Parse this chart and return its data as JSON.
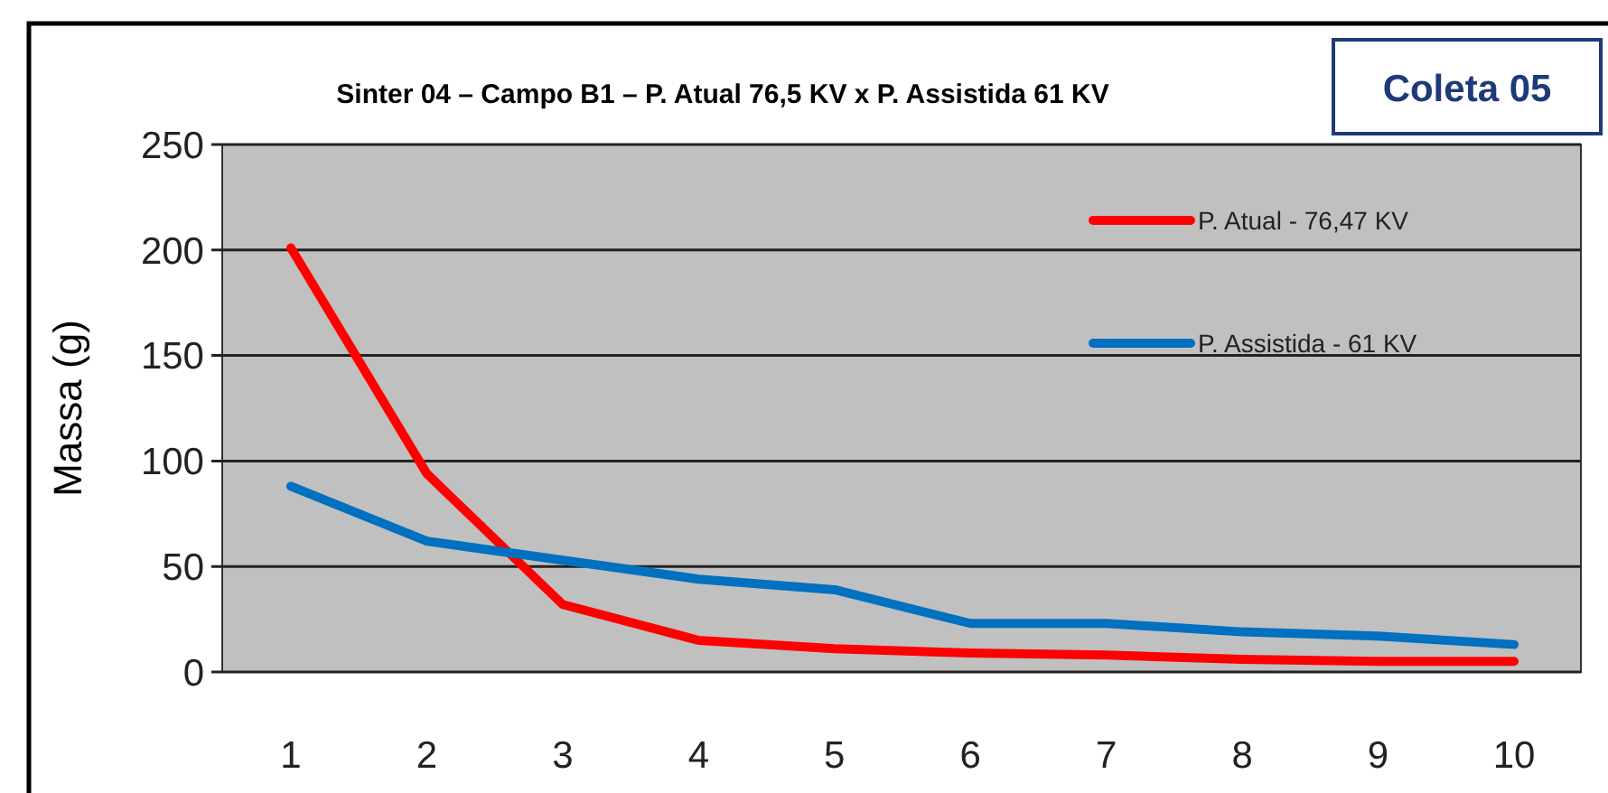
{
  "chart_data": {
    "type": "line",
    "title": "Sinter 04 – Campo B1 – P. Atual 76,5 KV x P. Assistida 61 KV",
    "ylabel": "Massa (g)",
    "annotations": [
      "Coleta 05"
    ],
    "categories": [
      "1",
      "2",
      "3",
      "4",
      "5",
      "6",
      "7",
      "8",
      "9",
      "10"
    ],
    "series": [
      {
        "name": "P. Atual - 76,47 KV",
        "color": "#ff0000",
        "values": [
          201,
          94,
          32,
          15,
          11,
          9,
          8,
          6,
          5,
          5
        ]
      },
      {
        "name": "P. Assistida - 61 KV",
        "color": "#0070c0",
        "values": [
          88,
          62,
          53,
          44,
          39,
          23,
          23,
          19,
          17,
          13
        ]
      }
    ],
    "ylim": [
      0,
      250
    ],
    "yticks": [
      0,
      50,
      100,
      150,
      200,
      250
    ],
    "grid": "y",
    "legend": "top right",
    "marker": "none",
    "line_style": "solid"
  }
}
